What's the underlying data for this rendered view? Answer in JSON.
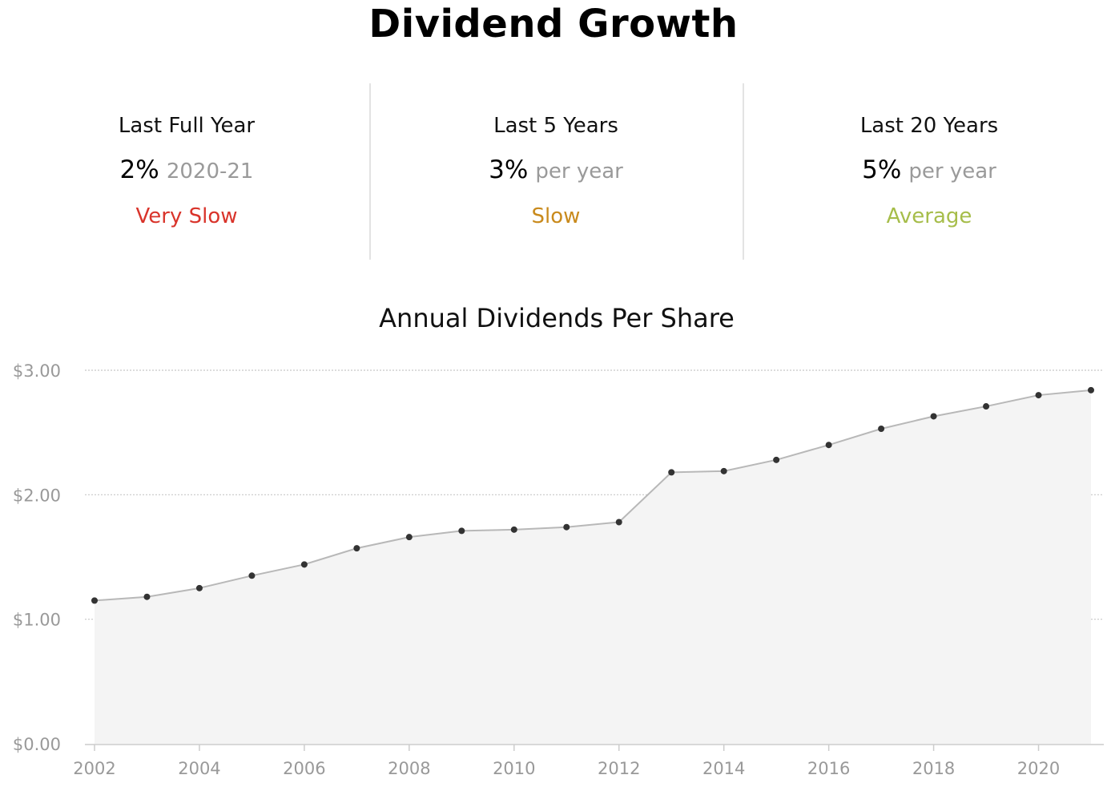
{
  "title": "Dividend Growth",
  "stats": [
    {
      "label": "Last Full Year",
      "value": "2%",
      "suffix": "2020-21",
      "rating": "Very Slow",
      "rating_color": "#d9342b"
    },
    {
      "label": "Last 5 Years",
      "value": "3%",
      "suffix": "per year",
      "rating": "Slow",
      "rating_color": "#c98a1c"
    },
    {
      "label": "Last 20 Years",
      "value": "5%",
      "suffix": "per year",
      "rating": "Average",
      "rating_color": "#a6bd4a"
    }
  ],
  "chart_data": {
    "type": "area",
    "title": "Annual Dividends Per Share",
    "xlabel": "",
    "ylabel": "",
    "x": [
      2002,
      2003,
      2004,
      2005,
      2006,
      2007,
      2008,
      2009,
      2010,
      2011,
      2012,
      2013,
      2014,
      2015,
      2016,
      2017,
      2018,
      2019,
      2020,
      2021
    ],
    "values": [
      1.15,
      1.18,
      1.25,
      1.35,
      1.44,
      1.57,
      1.66,
      1.71,
      1.72,
      1.74,
      1.78,
      2.18,
      2.19,
      2.28,
      2.4,
      2.53,
      2.63,
      2.71,
      2.8,
      2.84
    ],
    "xticks": [
      "2002",
      "2004",
      "2006",
      "2008",
      "2010",
      "2012",
      "2014",
      "2016",
      "2018",
      "2020"
    ],
    "yticks": [
      "$0.00",
      "$1.00",
      "$2.00",
      "$3.00"
    ],
    "ylim": [
      0,
      3
    ],
    "xlim": [
      2002,
      2021
    ],
    "grid": "horizontal dotted",
    "colors": {
      "line": "#b8b8b8",
      "fill": "#f4f4f4",
      "point": "#333333",
      "tick": "#999999",
      "grid": "#c8c8c8"
    }
  }
}
